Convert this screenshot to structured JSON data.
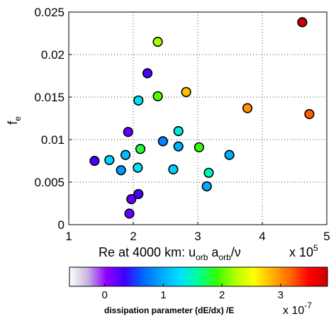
{
  "chart_data": {
    "type": "scatter",
    "xlabel_prefix": "Re at 4000 km: u",
    "xlabel_sub1": "orb",
    "xlabel_mid": " a",
    "xlabel_sub2": "orb",
    "xlabel_suffix": "/ν",
    "x_multiplier": "x 10",
    "x_multiplier_exp": "5",
    "ylabel": "f",
    "ylabel_sub": "e",
    "xlim": [
      1,
      5
    ],
    "ylim": [
      0,
      0.025
    ],
    "x_ticks": [
      "1",
      "2",
      "3",
      "4",
      "5"
    ],
    "y_ticks": [
      "0",
      "0.005",
      "0.01",
      "0.015",
      "0.02",
      "0.025"
    ],
    "grid": "dotted",
    "points": [
      {
        "x": 4.62,
        "y": 0.0238,
        "c": 3.8
      },
      {
        "x": 2.38,
        "y": 0.0215,
        "c": 2.2
      },
      {
        "x": 2.22,
        "y": 0.0178,
        "c": 0.3
      },
      {
        "x": 2.82,
        "y": 0.0156,
        "c": 2.8
      },
      {
        "x": 2.38,
        "y": 0.0151,
        "c": 2.0
      },
      {
        "x": 2.08,
        "y": 0.0146,
        "c": 1.3
      },
      {
        "x": 3.77,
        "y": 0.0137,
        "c": 3.0
      },
      {
        "x": 4.73,
        "y": 0.013,
        "c": 3.2
      },
      {
        "x": 2.7,
        "y": 0.011,
        "c": 1.4
      },
      {
        "x": 1.92,
        "y": 0.0109,
        "c": 0.2
      },
      {
        "x": 2.46,
        "y": 0.0098,
        "c": 0.8
      },
      {
        "x": 2.7,
        "y": 0.0092,
        "c": 1.0
      },
      {
        "x": 3.02,
        "y": 0.0091,
        "c": 1.9
      },
      {
        "x": 2.11,
        "y": 0.0089,
        "c": 1.8
      },
      {
        "x": 1.88,
        "y": 0.0082,
        "c": 1.1
      },
      {
        "x": 3.49,
        "y": 0.0082,
        "c": 1.0
      },
      {
        "x": 1.63,
        "y": 0.0076,
        "c": 1.2
      },
      {
        "x": 1.4,
        "y": 0.0075,
        "c": 0.3
      },
      {
        "x": 1.81,
        "y": 0.0064,
        "c": 0.9
      },
      {
        "x": 2.07,
        "y": 0.0067,
        "c": 1.3
      },
      {
        "x": 2.62,
        "y": 0.0065,
        "c": 1.2
      },
      {
        "x": 3.17,
        "y": 0.0061,
        "c": 1.5
      },
      {
        "x": 3.14,
        "y": 0.0045,
        "c": 1.0
      },
      {
        "x": 2.08,
        "y": 0.0036,
        "c": 0.3
      },
      {
        "x": 1.97,
        "y": 0.003,
        "c": 0.2
      },
      {
        "x": 1.94,
        "y": 0.0013,
        "c": 0.2
      }
    ],
    "colorbar": {
      "range": [
        -0.6,
        3.8
      ],
      "ticks": [
        "0",
        "1",
        "2",
        "3"
      ],
      "label": "dissipation parameter (dE/dx) /E",
      "multiplier": "x 10",
      "multiplier_exp": "-7",
      "colormap": [
        "#ffffff",
        "#c7b3e0",
        "#9000ff",
        "#3d00ff",
        "#0066ff",
        "#00a8ff",
        "#00e0ff",
        "#00ff99",
        "#33ff00",
        "#b3ff00",
        "#ffff00",
        "#ffb300",
        "#ff6600",
        "#ff0000",
        "#cc0000"
      ]
    }
  }
}
